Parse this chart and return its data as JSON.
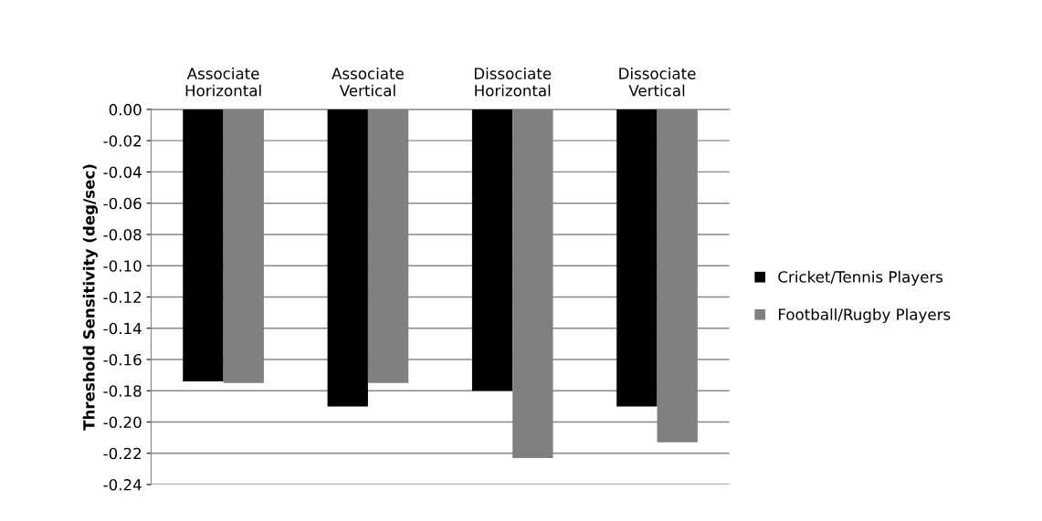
{
  "chart_data": {
    "type": "bar",
    "ylabel": "Threshold Sensitivity (deg/sec)",
    "categories": [
      "Associate\nHorizontal",
      "Associate\nVertical",
      "Dissociate\nHorizontal",
      "Dissociate\nVertical"
    ],
    "series": [
      {
        "name": "Cricket/Tennis Players",
        "color": "#000000",
        "values": [
          -0.174,
          -0.19,
          -0.18,
          -0.19
        ]
      },
      {
        "name": "Football/Rugby Players",
        "color": "#808080",
        "values": [
          -0.175,
          -0.175,
          -0.223,
          -0.213
        ]
      }
    ],
    "ylim": [
      -0.24,
      0.0
    ],
    "yticks": [
      {
        "value": 0.0,
        "label": "0.00"
      },
      {
        "value": -0.02,
        "label": "-0.02"
      },
      {
        "value": -0.04,
        "label": "-0.04"
      },
      {
        "value": -0.06,
        "label": "-0.06"
      },
      {
        "value": -0.08,
        "label": "-0.08"
      },
      {
        "value": -0.1,
        "label": "-0.10"
      },
      {
        "value": -0.12,
        "label": "-0.12"
      },
      {
        "value": -0.14,
        "label": "-0.14"
      },
      {
        "value": -0.16,
        "label": "-0.16"
      },
      {
        "value": -0.18,
        "label": "-0.18"
      },
      {
        "value": -0.2,
        "label": "-0.20"
      },
      {
        "value": -0.22,
        "label": "-0.22"
      },
      {
        "value": -0.24,
        "label": "-0.24"
      }
    ],
    "grid": "y",
    "legend": "right"
  }
}
